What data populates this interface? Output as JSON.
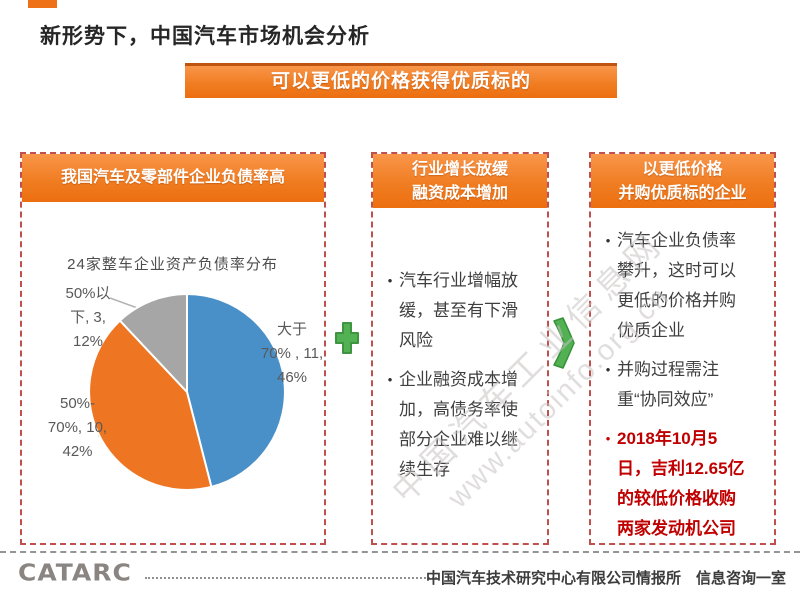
{
  "colors": {
    "accent": "#ee7118",
    "border_dash": "#c0504d",
    "red_highlight": "#c00000",
    "green": "#52b152",
    "watermark": "#c8c3c3",
    "footer_gray": "#8a8581"
  },
  "slide": {
    "title": "新形势下，中国汽车市场机会分析",
    "banner": "可以更低的价格获得优质标的"
  },
  "columns": [
    {
      "header": "我国汽车及零部件企业负债率高"
    },
    {
      "header_lines": [
        "行业增长放缓",
        "融资成本增加"
      ],
      "bullets": [
        "汽车行业增幅放缓，甚至有下滑风险",
        "企业融资成本增加，高债务率使部分企业难以继续生存"
      ]
    },
    {
      "header_lines": [
        "以更低价格",
        "并购优质标的企业"
      ],
      "bullets": [
        "汽车企业负债率攀升，这时可以更低的价格并购优质企业",
        "并购过程需注重“协同效应”"
      ],
      "highlight": "2018年10月5日，吉利12.65亿的较低价格收购两家发动机公司"
    }
  ],
  "chart_data": {
    "type": "pie",
    "title": "24家整车企业资产负债率分布",
    "total_companies": 24,
    "slices": [
      {
        "label": "大于70%",
        "count": 11,
        "pct": 46,
        "color": "#4a90c8",
        "label_lines": [
          "大于",
          "70% , 11,",
          "46%"
        ]
      },
      {
        "label": "50%-70%",
        "count": 10,
        "pct": 42,
        "color": "#ee7623",
        "label_lines": [
          "50%-",
          "70%, 10,",
          "42%"
        ]
      },
      {
        "label": "50%以下",
        "count": 3,
        "pct": 12,
        "color": "#a6a6a6",
        "label_lines": [
          "50%以",
          "下, 3,",
          "12%"
        ]
      }
    ]
  },
  "watermark": {
    "line1": "中国汽车工业信息网",
    "line2": "www.autoinfo.org.cn"
  },
  "footer": {
    "logo": "CATARC",
    "text": "中国汽车技术研究中心有限公司情报所　信息咨询一室"
  }
}
